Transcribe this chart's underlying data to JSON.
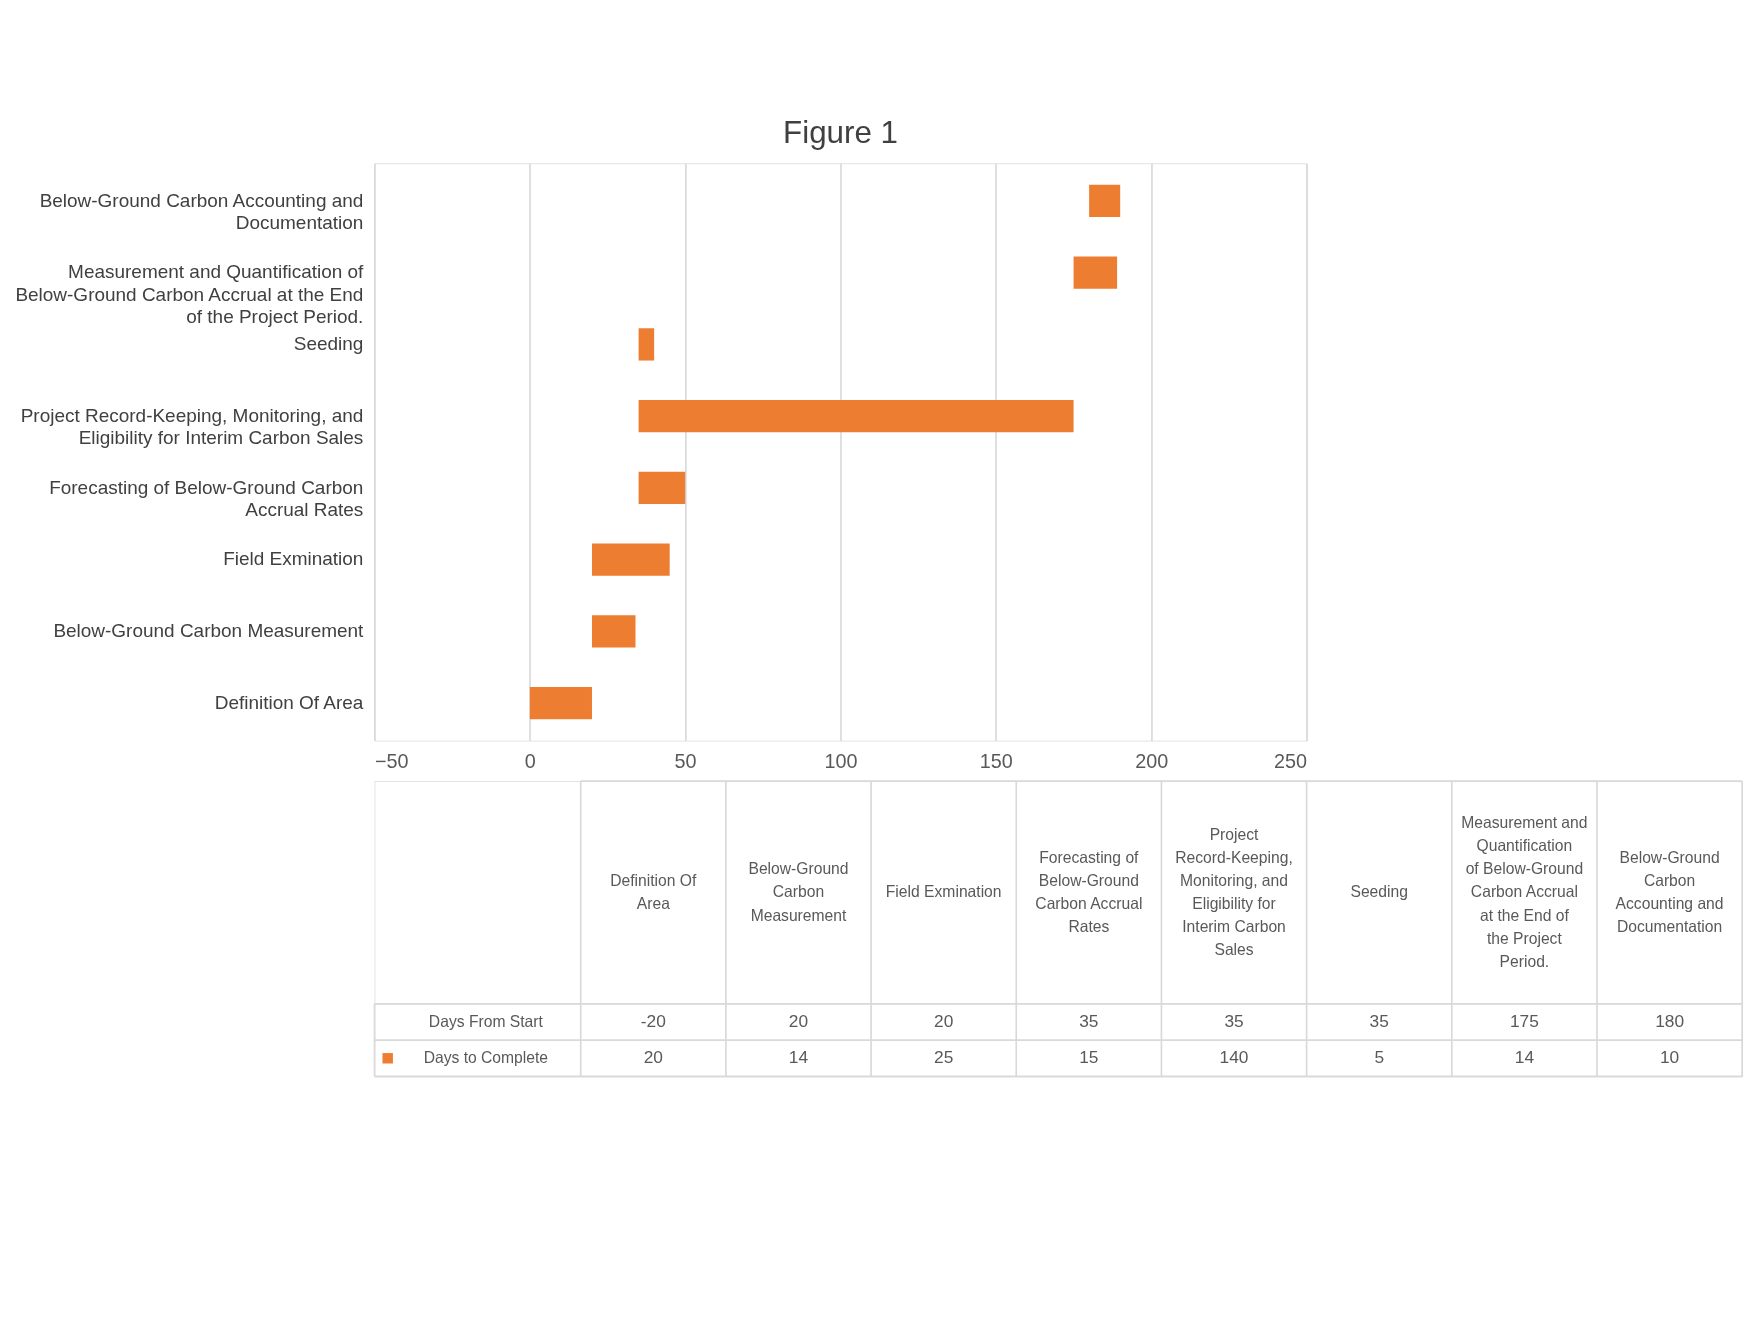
{
  "chart_data": {
    "type": "bar",
    "title": "Figure 1",
    "orientation": "horizontal",
    "categories": [
      "Below-Ground Carbon Accounting and Documentation",
      "Measurement and Quantification of Below-Ground Carbon Accrual at the End of the Project Period.",
      "Seeding",
      "Project Record-Keeping, Monitoring, and Eligibility for Interim Carbon Sales",
      "Forecasting of Below-Ground Carbon Accrual Rates",
      "Field Exmination",
      "Below-Ground Carbon Measurement",
      "Definition Of Area"
    ],
    "series": [
      {
        "name": "Days to Complete",
        "color": "#ed7d31",
        "values": [
          10,
          14,
          5,
          140,
          15,
          25,
          14,
          20
        ],
        "base": [
          180,
          175,
          35,
          35,
          35,
          20,
          20,
          0
        ]
      }
    ],
    "annotations": [
      "Definition Of Area",
      "Below-Ground Carbon Measurement",
      "Field Exmination",
      "Forecasting of Below-Ground Carbon Accrual Rates",
      "Project Record-Keeping, Monitoring, and Eligibility for Interim Carbon Sales",
      "Seeding",
      "Measurement and Quantification of Below-Ground Carbon Accrual at the End of the Project Period.",
      "Below-Ground Carbon Accounting and Documentation",
      "Days From Start",
      "-20",
      "20",
      "20",
      "35",
      "35",
      "35",
      "175",
      "180",
      "20",
      "14",
      "25",
      "15",
      "140",
      "5",
      "14",
      "10"
    ],
    "xlim": [
      -50,
      250
    ],
    "xticks": [
      -50,
      0,
      50,
      100,
      150,
      200,
      250
    ],
    "grid": "x",
    "legend": "bottom"
  }
}
